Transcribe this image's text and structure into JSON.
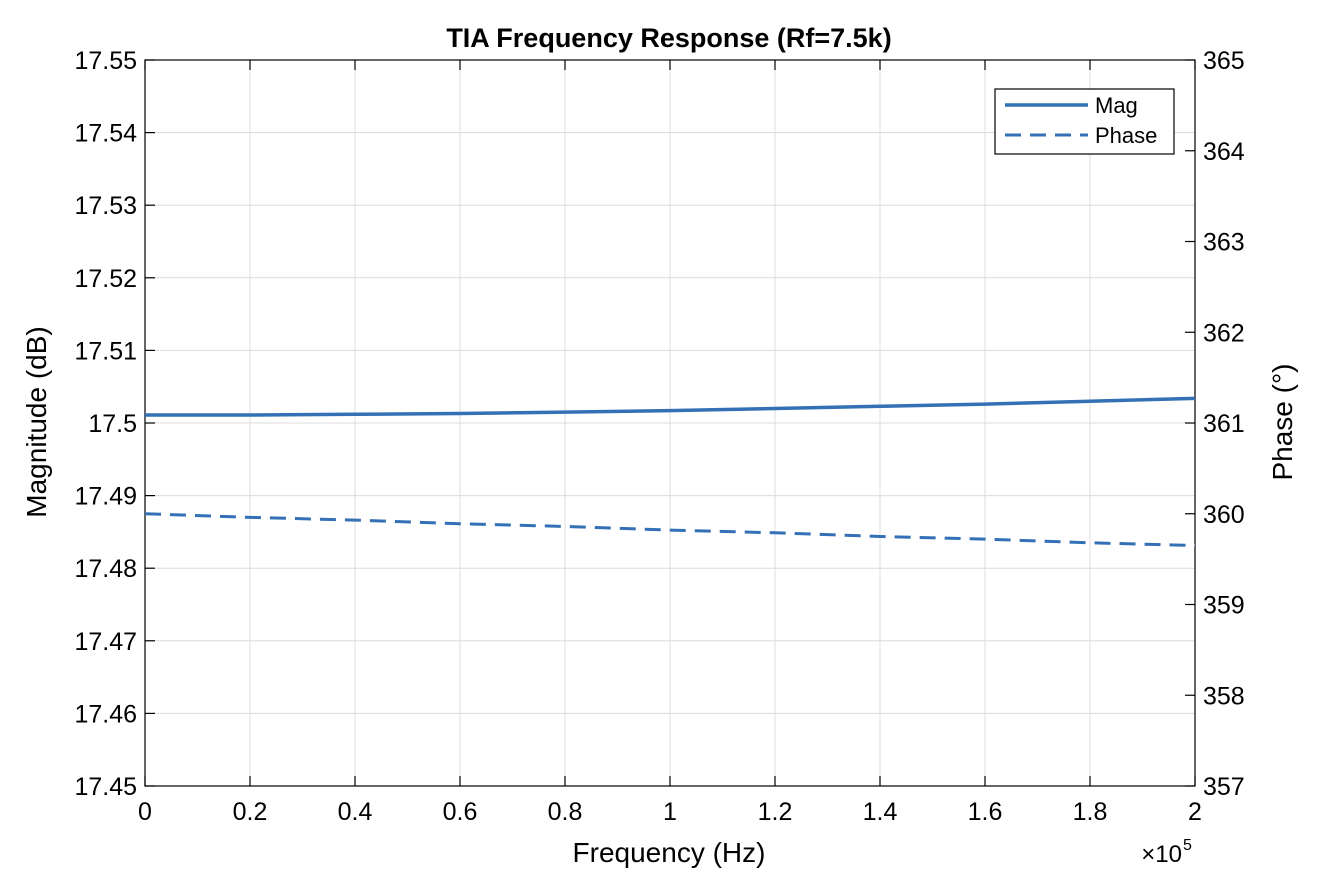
{
  "chart_data": {
    "type": "line",
    "title": "TIA Frequency Response (Rf=7.5k)",
    "xlabel": "Frequency (Hz)",
    "ylabel_left": "Magnitude (dB)",
    "ylabel_right": "Phase (°)",
    "x_exponent_label": "×10",
    "x_exponent_power": "5",
    "xlim": [
      0,
      200000
    ],
    "ylim_left": [
      17.45,
      17.55
    ],
    "ylim_right": [
      357,
      365
    ],
    "x_ticks": [
      0,
      20000,
      40000,
      60000,
      80000,
      100000,
      120000,
      140000,
      160000,
      180000,
      200000
    ],
    "x_tick_labels": [
      "0",
      "0.2",
      "0.4",
      "0.6",
      "0.8",
      "1",
      "1.2",
      "1.4",
      "1.6",
      "1.8",
      "2"
    ],
    "y_left_ticks": [
      17.45,
      17.46,
      17.47,
      17.48,
      17.49,
      17.5,
      17.51,
      17.52,
      17.53,
      17.54,
      17.55
    ],
    "y_left_tick_labels": [
      "17.45",
      "17.46",
      "17.47",
      "17.48",
      "17.49",
      "17.5",
      "17.51",
      "17.52",
      "17.53",
      "17.54",
      "17.55"
    ],
    "y_right_ticks": [
      357,
      358,
      359,
      360,
      361,
      362,
      363,
      364,
      365
    ],
    "y_right_tick_labels": [
      "357",
      "358",
      "359",
      "360",
      "361",
      "362",
      "363",
      "364",
      "365"
    ],
    "grid": true,
    "legend_position": "top-right",
    "color": "#3470b6",
    "series": [
      {
        "name": "Mag",
        "axis": "left",
        "style": "solid",
        "x": [
          0,
          20000,
          40000,
          60000,
          80000,
          100000,
          120000,
          140000,
          160000,
          180000,
          200000
        ],
        "y": [
          17.5011,
          17.5011,
          17.5012,
          17.5013,
          17.5015,
          17.5017,
          17.502,
          17.5023,
          17.5026,
          17.503,
          17.5034
        ]
      },
      {
        "name": "Phase",
        "axis": "right",
        "style": "dashed",
        "x": [
          0,
          20000,
          40000,
          60000,
          80000,
          100000,
          120000,
          140000,
          160000,
          180000,
          200000
        ],
        "y": [
          360.0,
          359.96,
          359.93,
          359.89,
          359.86,
          359.82,
          359.79,
          359.75,
          359.72,
          359.68,
          359.65
        ]
      }
    ]
  }
}
